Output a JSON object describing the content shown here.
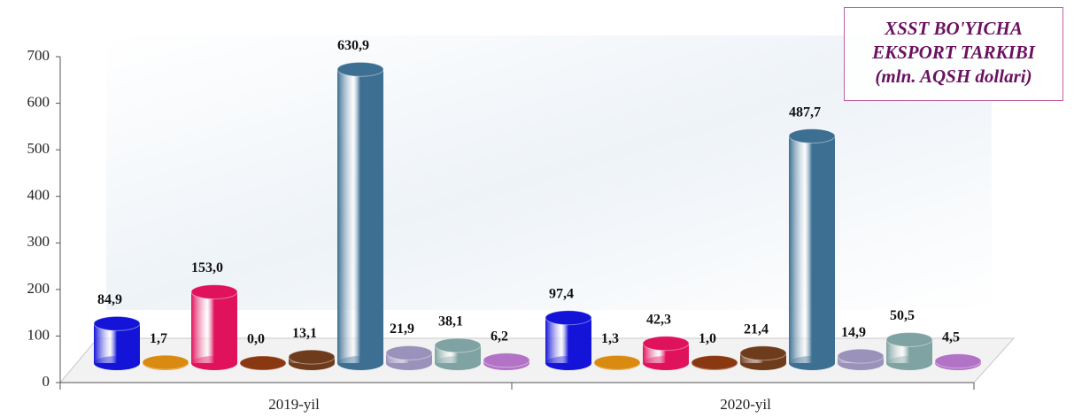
{
  "chart_data": {
    "type": "bar3d",
    "title": "XSST BO'YICHA EKSPORT TARKIBI",
    "subtitle": "(mln. AQSH dollari)",
    "categories": [
      "2019-yil",
      "2020-yil"
    ],
    "ylim": [
      0,
      700
    ],
    "yticks": [
      0,
      100,
      200,
      300,
      400,
      500,
      600,
      700
    ],
    "series": [
      {
        "color": "#1414d8",
        "values": [
          84.9,
          97.4
        ],
        "value_labels": [
          "84,9",
          "97,4"
        ]
      },
      {
        "color": "#d98a10",
        "values": [
          1.7,
          1.3
        ],
        "value_labels": [
          "1,7",
          "1,3"
        ]
      },
      {
        "color": "#e0125c",
        "values": [
          153.0,
          42.3
        ],
        "value_labels": [
          "153,0",
          "42,3"
        ]
      },
      {
        "color": "#8a3812",
        "values": [
          0.0,
          1.0
        ],
        "value_labels": [
          "0,0",
          "1,0"
        ]
      },
      {
        "color": "#6e3c1c",
        "values": [
          13.1,
          21.4
        ],
        "value_labels": [
          "13,1",
          "21,4"
        ]
      },
      {
        "color": "#3d6f92",
        "values": [
          630.9,
          487.7
        ],
        "value_labels": [
          "630,9",
          "487,7"
        ]
      },
      {
        "color": "#9a92ba",
        "values": [
          21.9,
          14.9
        ],
        "value_labels": [
          "21,9",
          "14,9"
        ]
      },
      {
        "color": "#7fa2a2",
        "values": [
          38.1,
          50.5
        ],
        "value_labels": [
          "38,1",
          "50,5"
        ]
      },
      {
        "color": "#b272c6",
        "values": [
          6.2,
          4.5
        ],
        "value_labels": [
          "6,2",
          "4,5"
        ]
      }
    ]
  }
}
